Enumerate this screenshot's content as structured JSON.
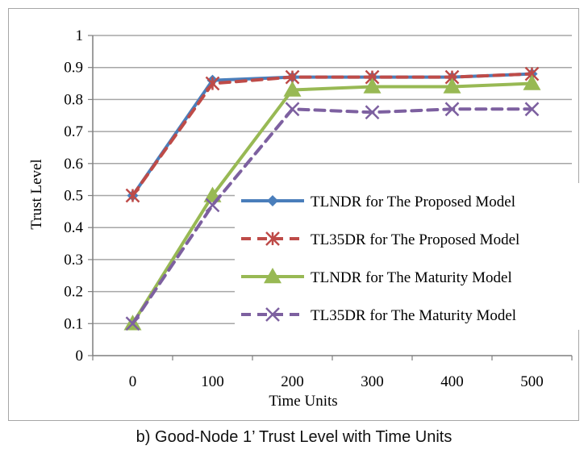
{
  "caption": "b) Good-Node 1’ Trust Level with Time Units",
  "colors": {
    "s1": "#4a7ebb",
    "s2": "#be4b48",
    "s3": "#98b954",
    "s4": "#7d60a0",
    "grid": "#a6a6a6",
    "axis": "#7f7f7f"
  },
  "chart_data": {
    "type": "line",
    "xlabel": "Time Units",
    "ylabel": "Trust Level",
    "categories": [
      "0",
      "100",
      "200",
      "300",
      "400",
      "500"
    ],
    "ylim": [
      0,
      1
    ],
    "yticks": [
      "0",
      "0.1",
      "0.2",
      "0.3",
      "0.4",
      "0.5",
      "0.6",
      "0.7",
      "0.8",
      "0.9",
      "1"
    ],
    "grid": true,
    "legend_position": "center-right",
    "series": [
      {
        "name": "TLNDR for The Proposed Model",
        "values": [
          0.5,
          0.86,
          0.87,
          0.87,
          0.87,
          0.88
        ],
        "color": "#4a7ebb",
        "dash": false,
        "marker": "diamond"
      },
      {
        "name": "TL35DR for The Proposed Model",
        "values": [
          0.5,
          0.85,
          0.87,
          0.87,
          0.87,
          0.88
        ],
        "color": "#be4b48",
        "dash": true,
        "marker": "star"
      },
      {
        "name": "TLNDR for The Maturity Model",
        "values": [
          0.1,
          0.5,
          0.83,
          0.84,
          0.84,
          0.85
        ],
        "color": "#98b954",
        "dash": false,
        "marker": "triangle"
      },
      {
        "name": "TL35DR for The Maturity Model",
        "values": [
          0.1,
          0.47,
          0.77,
          0.76,
          0.77,
          0.77
        ],
        "color": "#7d60a0",
        "dash": true,
        "marker": "x"
      }
    ]
  }
}
